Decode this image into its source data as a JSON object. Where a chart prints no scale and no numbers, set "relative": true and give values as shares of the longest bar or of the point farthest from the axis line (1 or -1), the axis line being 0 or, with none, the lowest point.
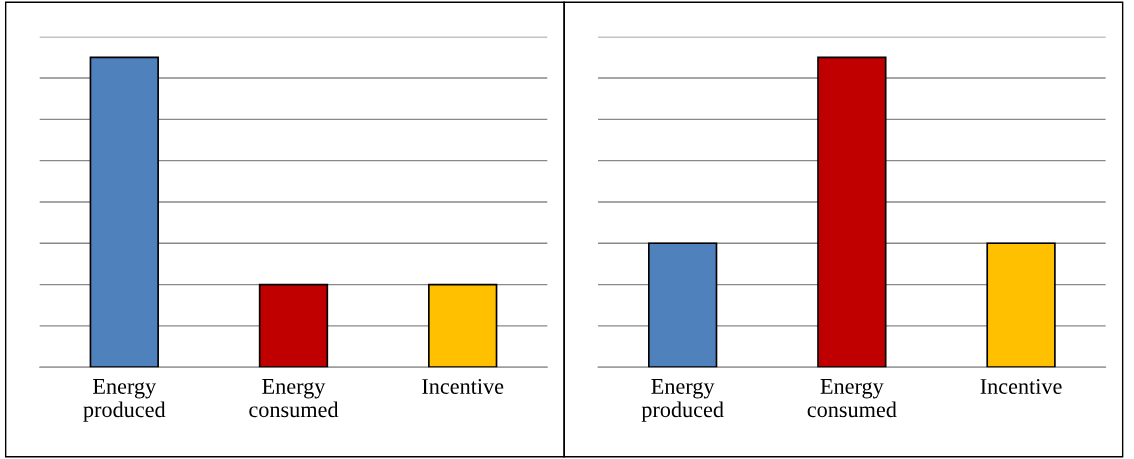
{
  "chart_data": [
    {
      "type": "bar",
      "categories": [
        "Energy\nproduced",
        "Energy\nconsumed",
        "Incentive"
      ],
      "values": [
        1,
        0.2667,
        0.2667
      ],
      "colors": [
        "#4f81bd",
        "#c00000",
        "#ffc000"
      ],
      "relative": true,
      "grid": "y",
      "legend": false
    },
    {
      "type": "bar",
      "categories": [
        "Energy\nproduced",
        "Energy\nconsumed",
        "Incentive"
      ],
      "values": [
        0.4,
        1,
        0.4
      ],
      "colors": [
        "#4f81bd",
        "#c00000",
        "#ffc000"
      ],
      "relative": true,
      "grid": "y",
      "legend": false
    }
  ]
}
